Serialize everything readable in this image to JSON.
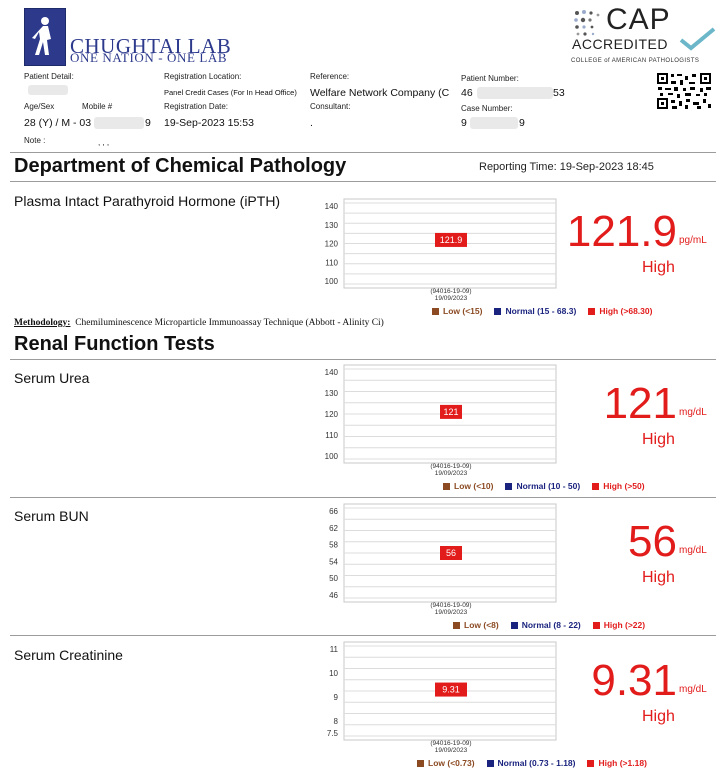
{
  "header": {
    "lab_name": "CHUGHTAI LAB",
    "lab_tagline": "ONE NATION - ONE LAB",
    "cap_title": "CAP",
    "cap_accredited": "ACCREDITED",
    "cap_subtitle": "COLLEGE of AMERICAN PATHOLOGISTS"
  },
  "patient": {
    "detail_label": "Patient Detail:",
    "age_sex_label": "Age/Sex",
    "age_sex": "28 (Y) / M - 03",
    "mobile_label": "Mobile #",
    "mobile_end": "9",
    "note_label": "Note :",
    "note_value": ", , ,",
    "reg_location_label": "Registration Location:",
    "reg_location": "Panel Credit Cases (For In Head Office)",
    "reg_date_label": "Registration Date:",
    "reg_date": "19-Sep-2023 15:53",
    "reference_label": "Reference:",
    "reference": "Welfare Network Company (C",
    "consultant_label": "Consultant:",
    "consultant": ".",
    "patient_number_label": "Patient Number:",
    "patient_number_start": "46",
    "patient_number_end": "53",
    "case_number_label": "Case Number:",
    "case_number_start": "9",
    "case_number_end": "9"
  },
  "department": "Department of Chemical Pathology",
  "reporting_time": "Reporting Time:  19-Sep-2023 18:45",
  "methodology": {
    "label": "Methodology:",
    "text": "Chemiluminescence Microparticle Immunoassay Technique (Abbott - Alinity Ci)"
  },
  "section_title": "Renal Function Tests",
  "colors": {
    "high": "#e21b1b",
    "low": "#8b4a22",
    "normal": "#1a237e"
  },
  "tests": [
    {
      "name": "Plasma Intact Parathyroid Hormone (iPTH)",
      "value": "121.9",
      "unit": "pg/mL",
      "flag": "High",
      "legend": {
        "low": "Low (<15)",
        "normal": "Normal (15 - 68.3)",
        "high": "High (>68.30)"
      },
      "chart_data": {
        "type": "bar",
        "ticks": [
          "140",
          "130",
          "120",
          "110",
          "100"
        ],
        "ylim": [
          100,
          140
        ],
        "point_label": "121.9",
        "point_value": 121.9,
        "x_label_1": "(94016-19-09)",
        "x_label_2": "19/09/2023"
      }
    },
    {
      "name": "Serum Urea",
      "value": "121",
      "unit": "mg/dL",
      "flag": "High",
      "legend": {
        "low": "Low (<10)",
        "normal": "Normal (10 - 50)",
        "high": "High (>50)"
      },
      "chart_data": {
        "type": "bar",
        "ticks": [
          "140",
          "130",
          "120",
          "110",
          "100"
        ],
        "ylim": [
          100,
          140
        ],
        "point_label": "121",
        "point_value": 121,
        "x_label_1": "(94016-19-09)",
        "x_label_2": "19/09/2023"
      }
    },
    {
      "name": "Serum BUN",
      "value": "56",
      "unit": "mg/dL",
      "flag": "High",
      "legend": {
        "low": "Low (<8)",
        "normal": "Normal (8 - 22)",
        "high": "High (>22)"
      },
      "chart_data": {
        "type": "bar",
        "ticks": [
          "66",
          "62",
          "58",
          "54",
          "50",
          "46"
        ],
        "ylim": [
          46,
          66
        ],
        "point_label": "56",
        "point_value": 56,
        "x_label_1": "(94016-19-09)",
        "x_label_2": "19/09/2023"
      }
    },
    {
      "name": "Serum Creatinine",
      "value": "9.31",
      "unit": "mg/dL",
      "flag": "High",
      "legend": {
        "low": "Low (<0.73)",
        "normal": "Normal (0.73 - 1.18)",
        "high": "High (>1.18)"
      },
      "chart_data": {
        "type": "bar",
        "ticks": [
          "11",
          "10",
          "9",
          "8",
          "7.5"
        ],
        "ylim": [
          7.5,
          11
        ],
        "point_label": "9.31",
        "point_value": 9.31,
        "x_label_1": "(94016-19-09)",
        "x_label_2": "19/09/2023"
      }
    }
  ]
}
